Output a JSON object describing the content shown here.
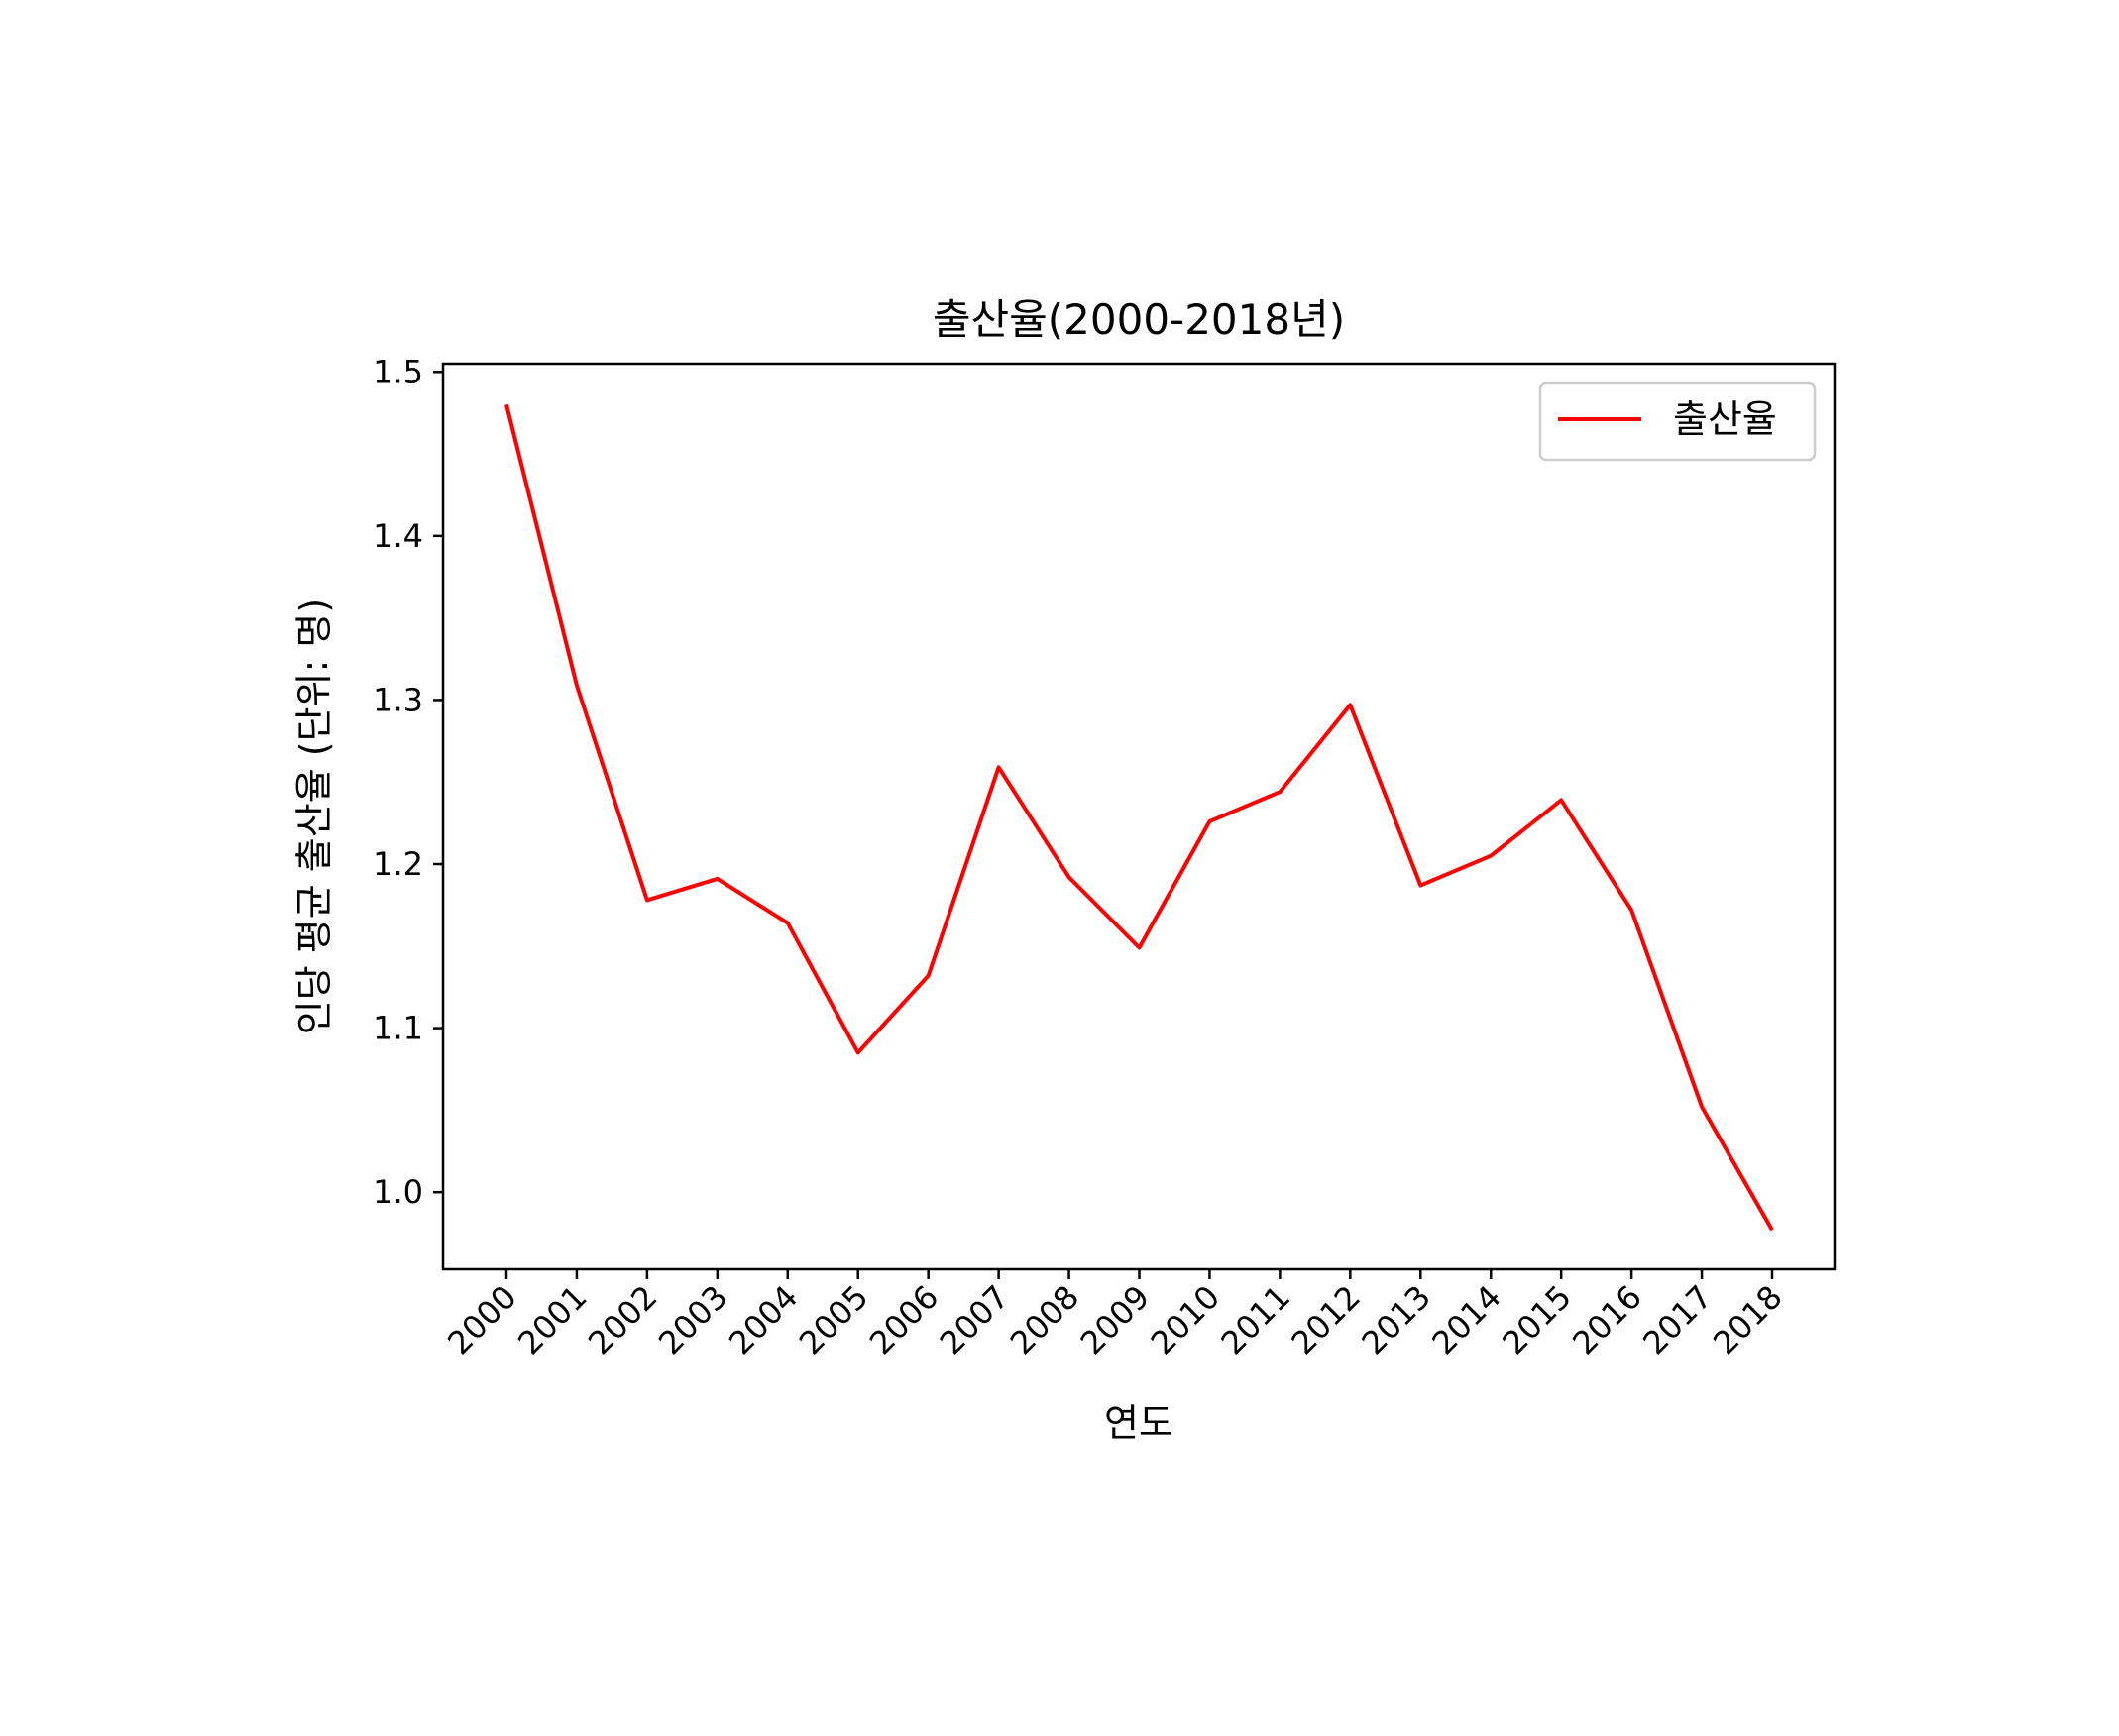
{
  "chart_data": {
    "type": "line",
    "title": "출산율(2000-2018년)",
    "xlabel": "연도",
    "ylabel": "인당 평균 출산율 (단위: 명)",
    "categories": [
      "2000",
      "2001",
      "2002",
      "2003",
      "2004",
      "2005",
      "2006",
      "2007",
      "2008",
      "2009",
      "2010",
      "2011",
      "2012",
      "2013",
      "2014",
      "2015",
      "2016",
      "2017",
      "2018"
    ],
    "series": [
      {
        "name": "출산율",
        "color": "#ff0000",
        "values": [
          1.48,
          1.309,
          1.178,
          1.191,
          1.164,
          1.085,
          1.132,
          1.259,
          1.192,
          1.149,
          1.226,
          1.244,
          1.297,
          1.187,
          1.205,
          1.239,
          1.172,
          1.052,
          0.977
        ]
      }
    ],
    "ylim": [
      0.953,
      1.505
    ],
    "yticks": [
      "1.0",
      "1.1",
      "1.2",
      "1.3",
      "1.4",
      "1.5"
    ],
    "grid": false,
    "legend": "top-right"
  }
}
